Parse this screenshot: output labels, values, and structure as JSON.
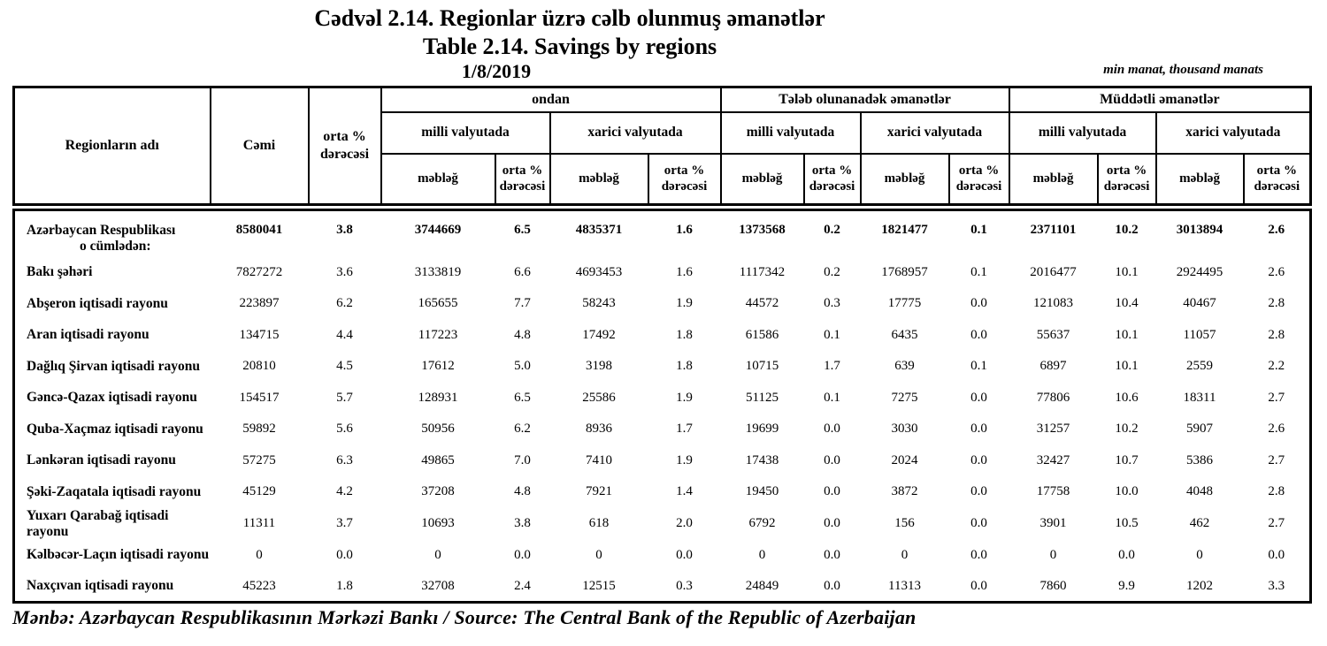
{
  "title_az": "Cədvəl 2.14. Regionlar üzrə cəlb olunmuş əmanətlər",
  "title_en": "Table 2.14. Savings by regions",
  "date": "1/8/2019",
  "unit_note": "min manat, thousand manats",
  "source_line": "Mənbə: Azərbaycan Respublikasının Mərkəzi Bankı / Source: The Central Bank of the Republic of Azerbaijan",
  "header": {
    "region": "Regionların adı",
    "total": "Cəmi",
    "avg_rate": "orta % dərəcəsi",
    "amount": "məbləğ",
    "rate": "orta % dərəcəsi",
    "currency_national": "milli valyutada",
    "currency_foreign": "xarici valyutada",
    "groups": [
      {
        "label": "ondan"
      },
      {
        "label": "Tələb olunanadək əmanətlər"
      },
      {
        "label": "Müddətli əmanətlər"
      }
    ]
  },
  "rows": [
    {
      "name": "Azərbaycan Respublikası",
      "sub": "o cümlədən:",
      "bold": true,
      "values": [
        "8580041",
        "3.8",
        "3744669",
        "6.5",
        "4835371",
        "1.6",
        "1373568",
        "0.2",
        "1821477",
        "0.1",
        "2371101",
        "10.2",
        "3013894",
        "2.6"
      ]
    },
    {
      "name": "Bakı şəhəri",
      "values": [
        "7827272",
        "3.6",
        "3133819",
        "6.6",
        "4693453",
        "1.6",
        "1117342",
        "0.2",
        "1768957",
        "0.1",
        "2016477",
        "10.1",
        "2924495",
        "2.6"
      ]
    },
    {
      "name": "Abşeron iqtisadi rayonu",
      "values": [
        "223897",
        "6.2",
        "165655",
        "7.7",
        "58243",
        "1.9",
        "44572",
        "0.3",
        "17775",
        "0.0",
        "121083",
        "10.4",
        "40467",
        "2.8"
      ]
    },
    {
      "name": "Aran iqtisadi rayonu",
      "values": [
        "134715",
        "4.4",
        "117223",
        "4.8",
        "17492",
        "1.8",
        "61586",
        "0.1",
        "6435",
        "0.0",
        "55637",
        "10.1",
        "11057",
        "2.8"
      ]
    },
    {
      "name": "Dağlıq Şirvan iqtisadi rayonu",
      "values": [
        "20810",
        "4.5",
        "17612",
        "5.0",
        "3198",
        "1.8",
        "10715",
        "1.7",
        "639",
        "0.1",
        "6897",
        "10.1",
        "2559",
        "2.2"
      ]
    },
    {
      "name": "Gəncə-Qazax iqtisadi rayonu",
      "values": [
        "154517",
        "5.7",
        "128931",
        "6.5",
        "25586",
        "1.9",
        "51125",
        "0.1",
        "7275",
        "0.0",
        "77806",
        "10.6",
        "18311",
        "2.7"
      ]
    },
    {
      "name": "Quba-Xaçmaz iqtisadi rayonu",
      "values": [
        "59892",
        "5.6",
        "50956",
        "6.2",
        "8936",
        "1.7",
        "19699",
        "0.0",
        "3030",
        "0.0",
        "31257",
        "10.2",
        "5907",
        "2.6"
      ]
    },
    {
      "name": "Lənkəran iqtisadi rayonu",
      "values": [
        "57275",
        "6.3",
        "49865",
        "7.0",
        "7410",
        "1.9",
        "17438",
        "0.0",
        "2024",
        "0.0",
        "32427",
        "10.7",
        "5386",
        "2.7"
      ]
    },
    {
      "name": "Şəki-Zaqatala iqtisadi rayonu",
      "values": [
        "45129",
        "4.2",
        "37208",
        "4.8",
        "7921",
        "1.4",
        "19450",
        "0.0",
        "3872",
        "0.0",
        "17758",
        "10.0",
        "4048",
        "2.8"
      ]
    },
    {
      "name": "Yuxarı Qarabağ iqtisadi rayonu",
      "values": [
        "11311",
        "3.7",
        "10693",
        "3.8",
        "618",
        "2.0",
        "6792",
        "0.0",
        "156",
        "0.0",
        "3901",
        "10.5",
        "462",
        "2.7"
      ]
    },
    {
      "name": "Kəlbəcər-Laçın iqtisadi rayonu",
      "values": [
        "0",
        "0.0",
        "0",
        "0.0",
        "0",
        "0.0",
        "0",
        "0.0",
        "0",
        "0.0",
        "0",
        "0.0",
        "0",
        "0.0"
      ]
    },
    {
      "name": "Naxçıvan iqtisadi rayonu",
      "values": [
        "45223",
        "1.8",
        "32708",
        "2.4",
        "12515",
        "0.3",
        "24849",
        "0.0",
        "11313",
        "0.0",
        "7860",
        "9.9",
        "1202",
        "3.3"
      ]
    }
  ]
}
